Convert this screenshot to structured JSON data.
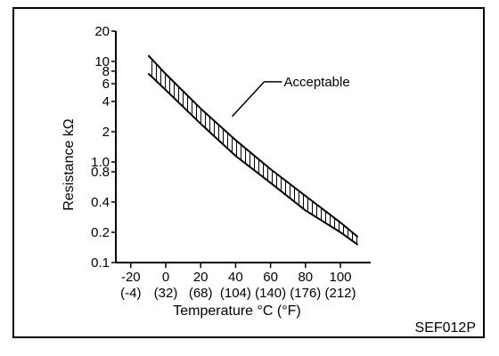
{
  "chart_data": {
    "type": "area",
    "title": "",
    "xlabel": "Temperature °C (°F)",
    "ylabel": "Resistance kΩ",
    "yscale": "log",
    "xlim": [
      -30,
      120
    ],
    "ylim": [
      0.1,
      20
    ],
    "x_ticks": [
      {
        "value": -20,
        "c": "-20",
        "f": "(-4)"
      },
      {
        "value": 0,
        "c": "0",
        "f": "(32)"
      },
      {
        "value": 20,
        "c": "20",
        "f": "(68)"
      },
      {
        "value": 40,
        "c": "40",
        "f": "(104)"
      },
      {
        "value": 60,
        "c": "60",
        "f": "(140)"
      },
      {
        "value": 80,
        "c": "80",
        "f": "(176)"
      },
      {
        "value": 100,
        "c": "100",
        "f": "(212)"
      }
    ],
    "y_ticks": [
      {
        "value": 20,
        "label": "20"
      },
      {
        "value": 10,
        "label": "10"
      },
      {
        "value": 8,
        "label": "8"
      },
      {
        "value": 6,
        "label": "6"
      },
      {
        "value": 4,
        "label": "4"
      },
      {
        "value": 2,
        "label": "2"
      },
      {
        "value": 1,
        "label": "1.0"
      },
      {
        "value": 0.8,
        "label": "0.8"
      },
      {
        "value": 0.4,
        "label": "0.4"
      },
      {
        "value": 0.2,
        "label": "0.2"
      },
      {
        "value": 0.1,
        "label": "0.1"
      }
    ],
    "x": [
      -10,
      0,
      20,
      40,
      60,
      80,
      100,
      110
    ],
    "series": [
      {
        "values_upper": [
          11.5,
          7.5,
          3.4,
          1.65,
          0.85,
          0.46,
          0.25,
          0.18
        ]
      },
      {
        "values_lower": [
          7.6,
          5.2,
          2.4,
          1.15,
          0.62,
          0.33,
          0.2,
          0.15
        ]
      }
    ],
    "annotations": [
      {
        "text": "Acceptable",
        "x": 38,
        "y": 3.2
      }
    ],
    "grid": false,
    "legend": "none"
  },
  "figure_code": "SEF012P"
}
